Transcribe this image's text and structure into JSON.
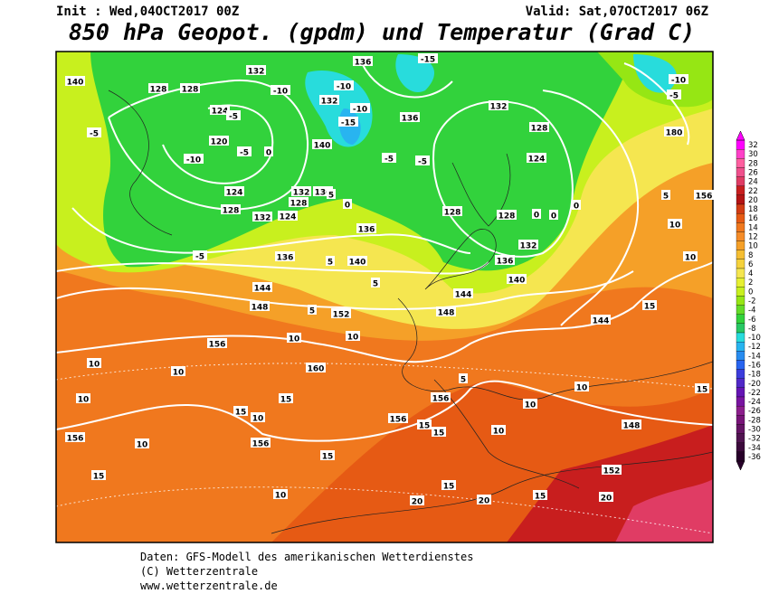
{
  "header": {
    "init": "Init : Wed,04OCT2017 00Z",
    "valid": "Valid: Sat,07OCT2017 06Z",
    "title": "850 hPa Geopot. (gpdm) und Temperatur (Grad C)"
  },
  "colorbar": {
    "levels": [
      32,
      30,
      28,
      26,
      24,
      22,
      20,
      18,
      16,
      14,
      12,
      10,
      8,
      6,
      4,
      2,
      0,
      -2,
      -4,
      -6,
      -8,
      -10,
      -12,
      -14,
      -16,
      -18,
      -20,
      -22,
      -24,
      -26,
      -28,
      -30,
      -32,
      -34,
      -36
    ],
    "colors": [
      "#ff00ff",
      "#ff40c8",
      "#ff5fa0",
      "#f0508c",
      "#e03c64",
      "#c81e1e",
      "#b41414",
      "#d23c14",
      "#e65a14",
      "#f0781e",
      "#f58c28",
      "#f5a028",
      "#f5be32",
      "#f5d23c",
      "#f5e650",
      "#e6f032",
      "#c8f01e",
      "#96e614",
      "#64dc28",
      "#32d23c",
      "#28c864",
      "#28dcdc",
      "#28b4f0",
      "#288cf0",
      "#2864f0",
      "#3c3cdc",
      "#5028c8",
      "#6414b4",
      "#7814a0",
      "#8c1e8c",
      "#781478",
      "#641464",
      "#501450",
      "#3c0a3c",
      "#28002a"
    ]
  },
  "map": {
    "contour_labels": [
      "140",
      "128",
      "128",
      "132",
      "136",
      "-15",
      "-10",
      "-5",
      "124",
      "-5",
      "120",
      "-5",
      "-10",
      "132",
      "140",
      "136",
      "132",
      "128",
      "124",
      "180",
      "124",
      "128",
      "132",
      "124",
      "132",
      "136",
      "128",
      "136",
      "128",
      "128",
      "132",
      "136",
      "140",
      "136",
      "140",
      "144",
      "148",
      "152",
      "148",
      "144",
      "144",
      "156",
      "160",
      "156",
      "156",
      "156",
      "148",
      "152",
      "156",
      "-5",
      "5",
      "5",
      "5",
      "10",
      "10",
      "10",
      "10",
      "10",
      "15",
      "15",
      "10",
      "10",
      "15",
      "15",
      "10",
      "20",
      "15",
      "20",
      "15",
      "20",
      "15",
      "15",
      "10",
      "10",
      "10",
      "15",
      "15",
      "5",
      "-5",
      "0",
      "5",
      "0",
      "0",
      "0",
      "0",
      "5",
      "10",
      "156",
      "10",
      "-10",
      "-10",
      "-15",
      "-10",
      "-5",
      "-5"
    ]
  },
  "footer": {
    "lines": [
      "Daten: GFS-Modell des amerikanischen Wetterdienstes",
      "(C) Wetterzentrale",
      "www.wetterzentrale.de"
    ]
  }
}
